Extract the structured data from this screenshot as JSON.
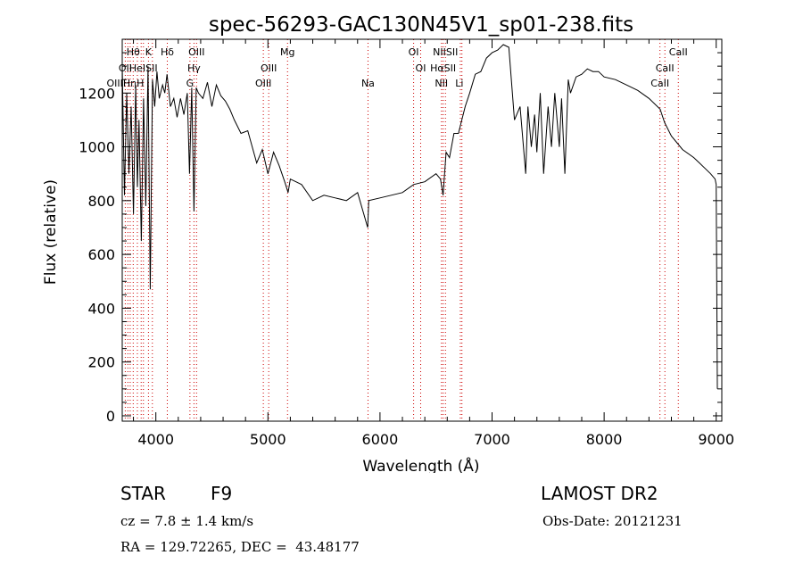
{
  "chart_data": {
    "type": "line",
    "title": "spec-56293-GAC130N45V1_sp01-238.fits",
    "xlabel": "Wavelength (Å)",
    "ylabel": "Flux (relative)",
    "xlim": [
      3700,
      9050
    ],
    "ylim": [
      -20,
      1400
    ],
    "xticks": [
      4000,
      5000,
      6000,
      7000,
      8000,
      9000
    ],
    "yticks": [
      0,
      200,
      400,
      600,
      800,
      1000,
      1200
    ],
    "grid": false,
    "line_color": "#000000",
    "marker_line_color": "#cc0000",
    "series": [
      {
        "x": [
          3700,
          3720,
          3740,
          3760,
          3780,
          3800,
          3820,
          3835,
          3850,
          3870,
          3890,
          3910,
          3930,
          3950,
          3970,
          3990,
          4010,
          4030,
          4060,
          4080,
          4100,
          4130,
          4160,
          4190,
          4220,
          4250,
          4280,
          4300,
          4320,
          4340,
          4360,
          4380,
          4420,
          4460,
          4500,
          4540,
          4580,
          4620,
          4660,
          4700,
          4760,
          4820,
          4860,
          4900,
          4950,
          5000,
          5050,
          5100,
          5150,
          5180,
          5200,
          5250,
          5300,
          5400,
          5500,
          5600,
          5700,
          5800,
          5890,
          5900,
          6000,
          6100,
          6200,
          6300,
          6400,
          6500,
          6540,
          6563,
          6590,
          6620,
          6660,
          6700,
          6760,
          6800,
          6850,
          6900,
          6950,
          7000,
          7050,
          7100,
          7150,
          7200,
          7250,
          7300,
          7320,
          7350,
          7380,
          7400,
          7430,
          7460,
          7500,
          7530,
          7560,
          7600,
          7620,
          7650,
          7680,
          7700,
          7750,
          7800,
          7850,
          7900,
          7950,
          8000,
          8100,
          8200,
          8300,
          8400,
          8500,
          8540,
          8600,
          8660,
          8700,
          8800,
          8850,
          8900,
          8950,
          8990,
          9000,
          9010
        ],
        "y": [
          1300,
          820,
          1200,
          900,
          1150,
          750,
          1230,
          850,
          1100,
          650,
          1180,
          780,
          1300,
          470,
          1250,
          1150,
          1280,
          1180,
          1230,
          1200,
          1270,
          1150,
          1180,
          1110,
          1180,
          1120,
          1200,
          900,
          1220,
          760,
          1220,
          1200,
          1180,
          1240,
          1150,
          1230,
          1190,
          1170,
          1140,
          1100,
          1050,
          1060,
          1000,
          940,
          990,
          900,
          980,
          930,
          870,
          830,
          880,
          870,
          860,
          800,
          820,
          810,
          800,
          830,
          700,
          800,
          810,
          820,
          830,
          860,
          870,
          900,
          880,
          820,
          980,
          960,
          1050,
          1050,
          1150,
          1200,
          1270,
          1280,
          1330,
          1350,
          1360,
          1380,
          1370,
          1100,
          1150,
          900,
          1150,
          1000,
          1120,
          980,
          1200,
          900,
          1150,
          1000,
          1200,
          1000,
          1180,
          900,
          1250,
          1200,
          1260,
          1270,
          1290,
          1280,
          1280,
          1260,
          1250,
          1230,
          1210,
          1180,
          1140,
          1090,
          1040,
          1010,
          990,
          960,
          940,
          920,
          900,
          880,
          860,
          100
        ]
      }
    ],
    "line_markers": [
      {
        "label": "Hθ",
        "x": 3798,
        "row": 0
      },
      {
        "label": "K",
        "x": 3934,
        "row": 0
      },
      {
        "label": "Hδ",
        "x": 4102,
        "row": 0
      },
      {
        "label": "OIII",
        "x": 4363,
        "row": 0
      },
      {
        "label": "Mg",
        "x": 5175,
        "row": 0
      },
      {
        "label": "OI",
        "x": 6300,
        "row": 0
      },
      {
        "label": "NIISII",
        "x": 6584,
        "row": 0
      },
      {
        "label": "CaII",
        "x": 8662,
        "row": 0
      },
      {
        "label": "OII",
        "x": 3727,
        "row": 1
      },
      {
        "label": "HeISII",
        "x": 3889,
        "row": 1
      },
      {
        "label": "Hγ",
        "x": 4340,
        "row": 1
      },
      {
        "label": "OIII",
        "x": 5007,
        "row": 1
      },
      {
        "label": "OI",
        "x": 6363,
        "row": 1
      },
      {
        "label": "HαSII",
        "x": 6563,
        "row": 1
      },
      {
        "label": "CaII",
        "x": 8542,
        "row": 1
      },
      {
        "label": "OIIIHηH",
        "x": 3727,
        "row": 2
      },
      {
        "label": "G",
        "x": 4304,
        "row": 2
      },
      {
        "label": "OIII",
        "x": 4959,
        "row": 2
      },
      {
        "label": "Na",
        "x": 5893,
        "row": 2
      },
      {
        "label": "NII",
        "x": 6548,
        "row": 2
      },
      {
        "label": "Li",
        "x": 6708,
        "row": 2
      },
      {
        "label": "CaII",
        "x": 8498,
        "row": 2
      }
    ],
    "marker_lines_x": [
      3727,
      3750,
      3771,
      3798,
      3835,
      3869,
      3889,
      3934,
      3969,
      4102,
      4304,
      4340,
      4363,
      4959,
      5007,
      5175,
      5893,
      6300,
      6363,
      6548,
      6563,
      6584,
      6717,
      6731,
      8498,
      8542,
      8662
    ]
  },
  "info": {
    "object_type": "STAR",
    "subclass": "F9",
    "survey": "LAMOST DR2",
    "cz": "cz = 7.8 ± 1.4 km/s",
    "obs_date": "Obs-Date: 20121231",
    "coords": "RA = 129.72265, DEC =  43.48177"
  }
}
